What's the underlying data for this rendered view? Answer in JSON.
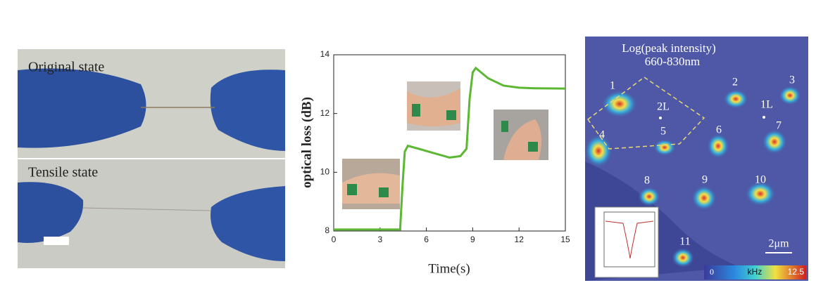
{
  "chart_data": {
    "type": "line",
    "xlabel": "Time(s)",
    "ylabel": "optical loss (dB)",
    "xlim": [
      0,
      15
    ],
    "ylim": [
      8,
      14
    ],
    "xticks": [
      0,
      3,
      6,
      9,
      12,
      15
    ],
    "yticks": [
      8,
      10,
      12,
      14
    ],
    "x": [
      0,
      4.3,
      4.45,
      4.6,
      4.8,
      5.5,
      6.5,
      7.5,
      8.2,
      8.6,
      8.8,
      9.0,
      9.2,
      10,
      11,
      12,
      13,
      15
    ],
    "series": [
      {
        "color": "#5cb833",
        "values": [
          8.05,
          8.05,
          9.5,
          10.7,
          10.9,
          10.8,
          10.65,
          10.5,
          10.55,
          10.8,
          12.5,
          13.4,
          13.55,
          13.2,
          12.95,
          12.88,
          12.86,
          12.85
        ]
      }
    ]
  },
  "photo": {
    "top_label": "Original state",
    "bottom_label": "Tensile state"
  },
  "heatmap": {
    "title": "Log(peak intensity)",
    "subtitle": "660-830nm",
    "spots": [
      "1",
      "2",
      "3",
      "4",
      "5",
      "6",
      "7",
      "8",
      "9",
      "10",
      "11"
    ],
    "lines": [
      "2L",
      "1L"
    ],
    "scale_bar": "2μm",
    "colorbar": {
      "min": "0",
      "unit": "kHz",
      "max": "12.5"
    }
  }
}
